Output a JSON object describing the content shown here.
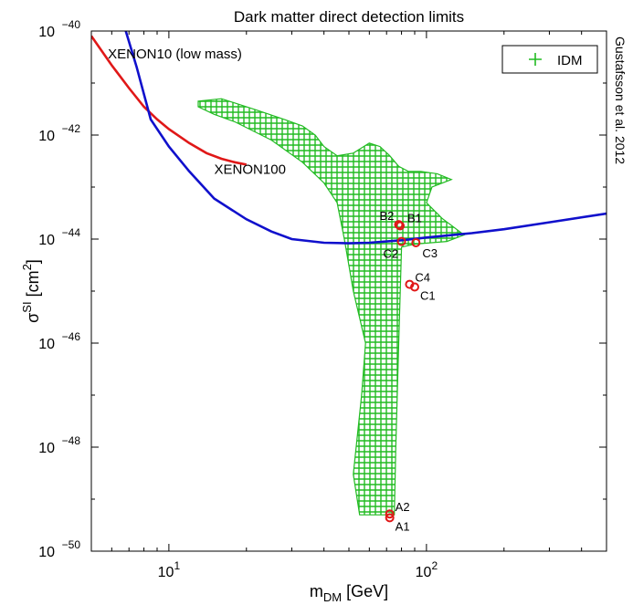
{
  "chart_data": {
    "type": "scatter",
    "title": "Dark matter direct detection limits",
    "xlabel": {
      "base": "m",
      "sub": "DM",
      "unit": " [GeV]"
    },
    "ylabel": {
      "base": "σ",
      "sup": "SI",
      "unit_open": " [cm",
      "unit_sup": "2",
      "unit_close": "]"
    },
    "credit": "Gustafsson et al. 2012",
    "x_scale": "log",
    "y_scale": "log",
    "xlim": [
      5,
      500
    ],
    "ylim": [
      1e-50,
      1e-40
    ],
    "x_ticks": [
      {
        "value": 10,
        "base": "10",
        "exp": "1"
      },
      {
        "value": 100,
        "base": "10",
        "exp": "2"
      }
    ],
    "y_ticks": [
      {
        "value": 1e-50,
        "base": "10",
        "exp": "−50"
      },
      {
        "value": 1e-48,
        "base": "10",
        "exp": "−48"
      },
      {
        "value": 1e-46,
        "base": "10",
        "exp": "−46"
      },
      {
        "value": 1e-44,
        "base": "10",
        "exp": "−44"
      },
      {
        "value": 1e-42,
        "base": "10",
        "exp": "−42"
      },
      {
        "value": 1e-40,
        "base": "10",
        "exp": "−40"
      }
    ],
    "grid": false,
    "legend": {
      "position": "top-right",
      "entries": [
        {
          "label": "IDM",
          "marker": "+",
          "color": "#22bb22"
        }
      ]
    },
    "curves": [
      {
        "name": "XENON10 (low mass)",
        "color": "#e01818",
        "points": [
          [
            5.0,
            8e-41
          ],
          [
            6.0,
            2.2e-41
          ],
          [
            7.0,
            8e-42
          ],
          [
            8.0,
            3.5e-42
          ],
          [
            9.0,
            2e-42
          ],
          [
            10.0,
            1.3e-42
          ],
          [
            12.0,
            7e-43
          ],
          [
            14.0,
            4.5e-43
          ],
          [
            16.0,
            3.5e-43
          ],
          [
            18.0,
            3e-43
          ],
          [
            20.0,
            2.7e-43
          ]
        ],
        "label_at": [
          5.8,
          3e-41
        ]
      },
      {
        "name": "XENON100",
        "color": "#1010cc",
        "points": [
          [
            6.8,
            1e-40
          ],
          [
            7.5,
            2e-41
          ],
          [
            8.5,
            2e-42
          ],
          [
            10.0,
            6e-43
          ],
          [
            12.0,
            2e-43
          ],
          [
            15.0,
            6e-44
          ],
          [
            20.0,
            2.4e-44
          ],
          [
            25.0,
            1.4e-44
          ],
          [
            30.0,
            1e-44
          ],
          [
            40.0,
            8.5e-45
          ],
          [
            50.0,
            8.3e-45
          ],
          [
            60.0,
            8.5e-45
          ],
          [
            80.0,
            9.5e-45
          ],
          [
            100.0,
            1.07e-44
          ],
          [
            150.0,
            1.3e-44
          ],
          [
            200.0,
            1.55e-44
          ],
          [
            300.0,
            2.1e-44
          ],
          [
            500.0,
            3.1e-44
          ]
        ],
        "label_at": [
          15.0,
          1.8e-43
        ]
      }
    ],
    "idm_region": {
      "color": "#22bb22",
      "marker": "+",
      "polygon": [
        [
          13,
          4.5e-42
        ],
        [
          16,
          5e-42
        ],
        [
          22,
          3e-42
        ],
        [
          28,
          2e-42
        ],
        [
          33,
          1.5e-42
        ],
        [
          37,
          1e-42
        ],
        [
          40,
          6e-43
        ],
        [
          45,
          4e-43
        ],
        [
          52,
          4.5e-43
        ],
        [
          60,
          7e-43
        ],
        [
          66,
          6e-43
        ],
        [
          72,
          4e-43
        ],
        [
          78,
          2.5e-43
        ],
        [
          85,
          2e-43
        ],
        [
          95,
          2e-43
        ],
        [
          110,
          1.8e-43
        ],
        [
          125,
          1.4e-43
        ],
        [
          105,
          1e-43
        ],
        [
          100,
          5e-44
        ],
        [
          115,
          2.5e-44
        ],
        [
          140,
          1.2e-44
        ],
        [
          120,
          9e-45
        ],
        [
          90,
          8e-45
        ],
        [
          80,
          7e-45
        ],
        [
          78,
          1e-46
        ],
        [
          76,
          1e-48
        ],
        [
          75,
          5e-50
        ],
        [
          55,
          5e-50
        ],
        [
          52,
          3e-49
        ],
        [
          56,
          1e-47
        ],
        [
          58,
          1e-46
        ],
        [
          52,
          1e-45
        ],
        [
          48,
          1e-44
        ],
        [
          45,
          5e-44
        ],
        [
          40,
          1.2e-43
        ],
        [
          33,
          3e-43
        ],
        [
          25,
          8e-43
        ],
        [
          18,
          1.8e-42
        ],
        [
          15,
          2.5e-42
        ],
        [
          13,
          3.5e-42
        ]
      ]
    },
    "benchmark_points": [
      {
        "label": "A1",
        "x": 72,
        "y": 4.4e-50,
        "dx": 6,
        "dy": 14
      },
      {
        "label": "A2",
        "x": 72,
        "y": 5.2e-50,
        "dx": 6,
        "dy": -3
      },
      {
        "label": "B1",
        "x": 79,
        "y": 1.8e-44,
        "dx": 8,
        "dy": -4
      },
      {
        "label": "B2",
        "x": 78,
        "y": 1.9e-44,
        "dx": -21,
        "dy": -5
      },
      {
        "label": "C1",
        "x": 90,
        "y": 1.2e-45,
        "dx": 6,
        "dy": 14
      },
      {
        "label": "C2",
        "x": 80,
        "y": 9e-45,
        "dx": -20,
        "dy": 18
      },
      {
        "label": "C3",
        "x": 91,
        "y": 8.5e-45,
        "dx": 7,
        "dy": 16
      },
      {
        "label": "C4",
        "x": 86,
        "y": 1.35e-45,
        "dx": 6,
        "dy": -3
      }
    ],
    "benchmark_color": "#e01818",
    "benchmark_label_color": "#cc4444"
  }
}
